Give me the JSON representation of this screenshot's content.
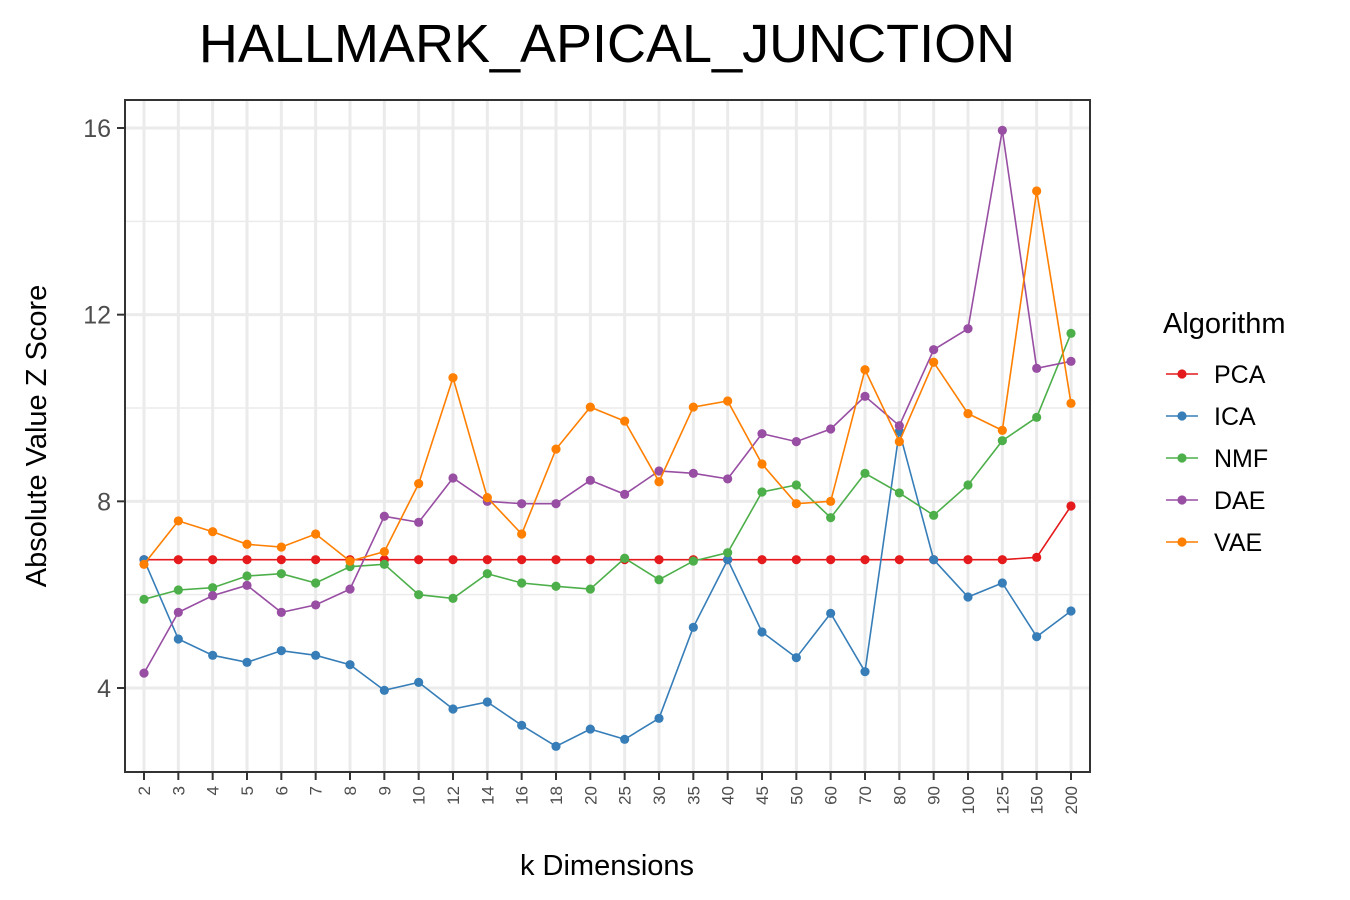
{
  "chart_data": {
    "type": "line",
    "title": "HALLMARK_APICAL_JUNCTION",
    "xlabel": "k Dimensions",
    "ylabel": "Absolute Value Z Score",
    "categories": [
      "2",
      "3",
      "4",
      "5",
      "6",
      "7",
      "8",
      "9",
      "10",
      "12",
      "14",
      "16",
      "18",
      "20",
      "25",
      "30",
      "35",
      "40",
      "45",
      "50",
      "60",
      "70",
      "80",
      "90",
      "100",
      "125",
      "150",
      "200"
    ],
    "ylim": [
      2.2,
      16.6
    ],
    "yticks": [
      4,
      8,
      12,
      16
    ],
    "grid": true,
    "legend": {
      "title": "Algorithm",
      "placement": "right"
    },
    "series": [
      {
        "name": "PCA",
        "color": "#e41a1c",
        "values": [
          6.75,
          6.75,
          6.75,
          6.75,
          6.75,
          6.75,
          6.75,
          6.75,
          6.75,
          6.75,
          6.75,
          6.75,
          6.75,
          6.75,
          6.75,
          6.75,
          6.75,
          6.75,
          6.75,
          6.75,
          6.75,
          6.75,
          6.75,
          6.75,
          6.75,
          6.75,
          6.8,
          7.9
        ]
      },
      {
        "name": "ICA",
        "color": "#377eb8",
        "values": [
          6.75,
          5.05,
          4.7,
          4.55,
          4.8,
          4.7,
          4.5,
          3.95,
          4.12,
          3.55,
          3.7,
          3.2,
          2.75,
          3.12,
          2.9,
          3.35,
          5.3,
          6.75,
          5.2,
          4.65,
          5.6,
          4.35,
          9.5,
          6.75,
          5.95,
          6.25,
          5.1,
          5.65
        ]
      },
      {
        "name": "NMF",
        "color": "#4daf4a",
        "values": [
          5.9,
          6.1,
          6.15,
          6.4,
          6.45,
          6.25,
          6.6,
          6.65,
          6.0,
          5.92,
          6.45,
          6.25,
          6.18,
          6.12,
          6.78,
          6.32,
          6.72,
          6.9,
          8.2,
          8.35,
          7.65,
          8.6,
          8.18,
          7.7,
          8.35,
          9.3,
          9.8,
          11.6
        ]
      },
      {
        "name": "DAE",
        "color": "#984ea3",
        "values": [
          4.32,
          5.62,
          5.98,
          6.2,
          5.62,
          5.78,
          6.12,
          7.68,
          7.55,
          8.5,
          8.0,
          7.95,
          7.95,
          8.45,
          8.15,
          8.65,
          8.6,
          8.48,
          9.45,
          9.28,
          9.55,
          10.25,
          9.62,
          11.25,
          11.7,
          15.95,
          10.85,
          11.0
        ]
      },
      {
        "name": "VAE",
        "color": "#ff7f00",
        "values": [
          6.65,
          7.58,
          7.35,
          7.08,
          7.02,
          7.3,
          6.72,
          6.92,
          8.38,
          10.65,
          8.08,
          7.3,
          9.12,
          10.02,
          9.72,
          8.42,
          10.02,
          10.15,
          8.8,
          7.95,
          8.0,
          10.82,
          9.28,
          10.98,
          9.88,
          9.52,
          14.65,
          10.1
        ]
      }
    ]
  }
}
